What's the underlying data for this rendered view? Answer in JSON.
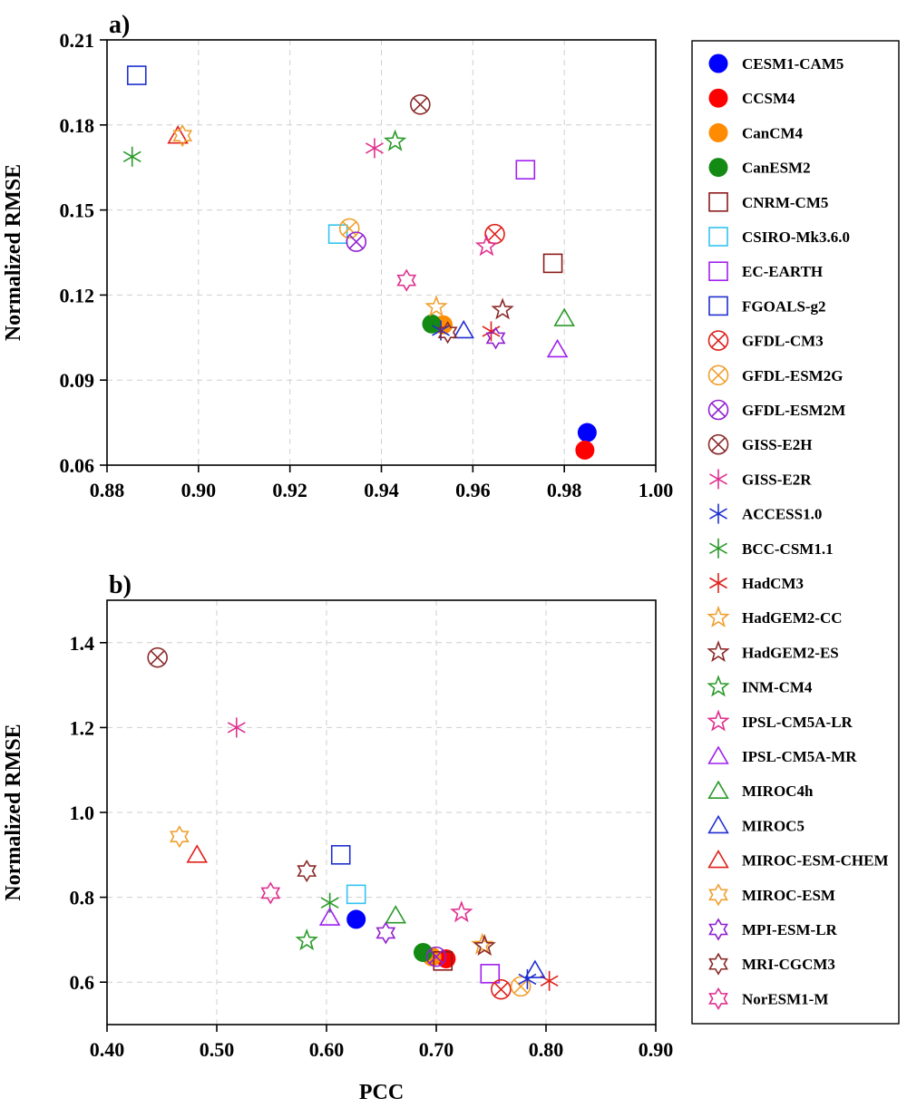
{
  "chart_data": [
    {
      "type": "scatter",
      "panel_label": "a)",
      "xlabel": "",
      "ylabel": "Normalized RMSE",
      "xlim": [
        0.88,
        1.0
      ],
      "ylim": [
        0.06,
        0.21
      ],
      "xticks": [
        "0.88",
        "0.90",
        "0.92",
        "0.94",
        "0.96",
        "0.98",
        "1.00"
      ],
      "yticks": [
        "0.06",
        "0.09",
        "0.12",
        "0.15",
        "0.18",
        "0.21"
      ],
      "grid": true,
      "points": [
        {
          "model": "CESM1-CAM5",
          "x": 0.985,
          "y": 0.0715
        },
        {
          "model": "CCSM4",
          "x": 0.9845,
          "y": 0.0653
        },
        {
          "model": "CanCM4",
          "x": 0.9535,
          "y": 0.1095
        },
        {
          "model": "CanESM2",
          "x": 0.951,
          "y": 0.1098
        },
        {
          "model": "CNRM-CM5",
          "x": 0.9775,
          "y": 0.1312
        },
        {
          "model": "CSIRO-Mk3.6.0",
          "x": 0.9305,
          "y": 0.1415
        },
        {
          "model": "EC-EARTH",
          "x": 0.9715,
          "y": 0.1642
        },
        {
          "model": "FGOALS-g2",
          "x": 0.8865,
          "y": 0.1975
        },
        {
          "model": "GFDL-CM3",
          "x": 0.9648,
          "y": 0.1415
        },
        {
          "model": "GFDL-ESM2G",
          "x": 0.933,
          "y": 0.1435
        },
        {
          "model": "GFDL-ESM2M",
          "x": 0.9345,
          "y": 0.1388
        },
        {
          "model": "GISS-E2H",
          "x": 0.9485,
          "y": 0.1872
        },
        {
          "model": "GISS-E2R",
          "x": 0.9385,
          "y": 0.1718
        },
        {
          "model": "ACCESS1.0",
          "x": 0.953,
          "y": 0.1075
        },
        {
          "model": "BCC-CSM1.1",
          "x": 0.8855,
          "y": 0.1688
        },
        {
          "model": "HadCM3",
          "x": 0.964,
          "y": 0.1072
        },
        {
          "model": "HadGEM2-CC",
          "x": 0.952,
          "y": 0.1158
        },
        {
          "model": "HadGEM2-ES",
          "x": 0.9665,
          "y": 0.1148
        },
        {
          "model": "INM-CM4",
          "x": 0.943,
          "y": 0.1742
        },
        {
          "model": "IPSL-CM5A-LR",
          "x": 0.963,
          "y": 0.1372
        },
        {
          "model": "IPSL-CM5A-MR",
          "x": 0.9785,
          "y": 0.1008
        },
        {
          "model": "MIROC4h",
          "x": 0.98,
          "y": 0.1118
        },
        {
          "model": "MIROC5",
          "x": 0.958,
          "y": 0.1075
        },
        {
          "model": "MIROC-ESM-CHEM",
          "x": 0.8955,
          "y": 0.1762
        },
        {
          "model": "MIROC-ESM",
          "x": 0.8965,
          "y": 0.1762
        },
        {
          "model": "MPI-ESM-LR",
          "x": 0.965,
          "y": 0.1048
        },
        {
          "model": "MRI-CGCM3",
          "x": 0.9545,
          "y": 0.1068
        },
        {
          "model": "NorESM1-M",
          "x": 0.9455,
          "y": 0.1252
        }
      ]
    },
    {
      "type": "scatter",
      "panel_label": "b)",
      "xlabel": "PCC",
      "ylabel": "Normalized RMSE",
      "xlim": [
        0.4,
        0.9
      ],
      "ylim": [
        0.5,
        1.5
      ],
      "xticks": [
        "0.40",
        "0.50",
        "0.60",
        "0.70",
        "0.80",
        "0.90"
      ],
      "yticks": [
        "0.6",
        "0.8",
        "1.0",
        "1.2",
        "1.4"
      ],
      "grid": true,
      "points": [
        {
          "model": "CESM1-CAM5",
          "x": 0.627,
          "y": 0.748
        },
        {
          "model": "CCSM4",
          "x": 0.709,
          "y": 0.655
        },
        {
          "model": "CanCM4",
          "x": 0.696,
          "y": 0.66
        },
        {
          "model": "CanESM2",
          "x": 0.688,
          "y": 0.67
        },
        {
          "model": "CNRM-CM5",
          "x": 0.706,
          "y": 0.65
        },
        {
          "model": "CSIRO-Mk3.6.0",
          "x": 0.627,
          "y": 0.807
        },
        {
          "model": "EC-EARTH",
          "x": 0.749,
          "y": 0.62
        },
        {
          "model": "FGOALS-g2",
          "x": 0.613,
          "y": 0.9
        },
        {
          "model": "GFDL-CM3",
          "x": 0.759,
          "y": 0.583
        },
        {
          "model": "GFDL-ESM2G",
          "x": 0.777,
          "y": 0.59
        },
        {
          "model": "GFDL-ESM2M",
          "x": 0.7,
          "y": 0.66
        },
        {
          "model": "GISS-E2H",
          "x": 0.446,
          "y": 1.365
        },
        {
          "model": "GISS-E2R",
          "x": 0.518,
          "y": 1.2
        },
        {
          "model": "ACCESS1.0",
          "x": 0.783,
          "y": 0.607
        },
        {
          "model": "BCC-CSM1.1",
          "x": 0.603,
          "y": 0.787
        },
        {
          "model": "HadCM3",
          "x": 0.803,
          "y": 0.603
        },
        {
          "model": "HadGEM2-CC",
          "x": 0.742,
          "y": 0.688
        },
        {
          "model": "HadGEM2-ES",
          "x": 0.744,
          "y": 0.685
        },
        {
          "model": "INM-CM4",
          "x": 0.582,
          "y": 0.698
        },
        {
          "model": "IPSL-CM5A-LR",
          "x": 0.723,
          "y": 0.764
        },
        {
          "model": "IPSL-CM5A-MR",
          "x": 0.603,
          "y": 0.752
        },
        {
          "model": "MIROC4h",
          "x": 0.663,
          "y": 0.757
        },
        {
          "model": "MIROC5",
          "x": 0.79,
          "y": 0.628
        },
        {
          "model": "MIROC-ESM-CHEM",
          "x": 0.482,
          "y": 0.9
        },
        {
          "model": "MIROC-ESM",
          "x": 0.466,
          "y": 0.943
        },
        {
          "model": "MPI-ESM-LR",
          "x": 0.654,
          "y": 0.716
        },
        {
          "model": "MRI-CGCM3",
          "x": 0.582,
          "y": 0.862
        },
        {
          "model": "NorESM1-M",
          "x": 0.549,
          "y": 0.81
        }
      ]
    }
  ],
  "legend": {
    "placement": "right",
    "entries": [
      {
        "label": "CESM1-CAM5",
        "marker": "filled-circle",
        "color": "#0000FF"
      },
      {
        "label": "CCSM4",
        "marker": "filled-circle",
        "color": "#FF0000"
      },
      {
        "label": "CanCM4",
        "marker": "filled-circle",
        "color": "#FF8C00"
      },
      {
        "label": "CanESM2",
        "marker": "filled-circle",
        "color": "#138A13"
      },
      {
        "label": "CNRM-CM5",
        "marker": "square",
        "color": "#8B1A1A"
      },
      {
        "label": "CSIRO-Mk3.6.0",
        "marker": "square",
        "color": "#33C3F0"
      },
      {
        "label": "EC-EARTH",
        "marker": "square",
        "color": "#A020F0"
      },
      {
        "label": "FGOALS-g2",
        "marker": "square",
        "color": "#1F2FD0"
      },
      {
        "label": "GFDL-CM3",
        "marker": "circle-x",
        "color": "#E0201A"
      },
      {
        "label": "GFDL-ESM2G",
        "marker": "circle-x",
        "color": "#F0A030"
      },
      {
        "label": "GFDL-ESM2M",
        "marker": "circle-x",
        "color": "#9020D0"
      },
      {
        "label": "GISS-E2H",
        "marker": "circle-x",
        "color": "#8B2A2A"
      },
      {
        "label": "GISS-E2R",
        "marker": "asterisk",
        "color": "#E0308F"
      },
      {
        "label": "ACCESS1.0",
        "marker": "asterisk",
        "color": "#1F2FD0"
      },
      {
        "label": "BCC-CSM1.1",
        "marker": "asterisk",
        "color": "#2A9A2A"
      },
      {
        "label": "HadCM3",
        "marker": "asterisk",
        "color": "#E0201A"
      },
      {
        "label": "HadGEM2-CC",
        "marker": "star",
        "color": "#F0A030"
      },
      {
        "label": "HadGEM2-ES",
        "marker": "star",
        "color": "#8B2A2A"
      },
      {
        "label": "INM-CM4",
        "marker": "star",
        "color": "#2A9A2A"
      },
      {
        "label": "IPSL-CM5A-LR",
        "marker": "star",
        "color": "#E0308F"
      },
      {
        "label": "IPSL-CM5A-MR",
        "marker": "triangle",
        "color": "#A020F0"
      },
      {
        "label": "MIROC4h",
        "marker": "triangle",
        "color": "#2A9A2A"
      },
      {
        "label": "MIROC5",
        "marker": "triangle",
        "color": "#1F2FD0"
      },
      {
        "label": "MIROC-ESM-CHEM",
        "marker": "triangle",
        "color": "#E0201A"
      },
      {
        "label": "MIROC-ESM",
        "marker": "hexagram",
        "color": "#F0A030"
      },
      {
        "label": "MPI-ESM-LR",
        "marker": "hexagram",
        "color": "#9020D0"
      },
      {
        "label": "MRI-CGCM3",
        "marker": "hexagram",
        "color": "#8B2A2A"
      },
      {
        "label": "NorESM1-M",
        "marker": "hexagram",
        "color": "#E0308F"
      }
    ]
  }
}
